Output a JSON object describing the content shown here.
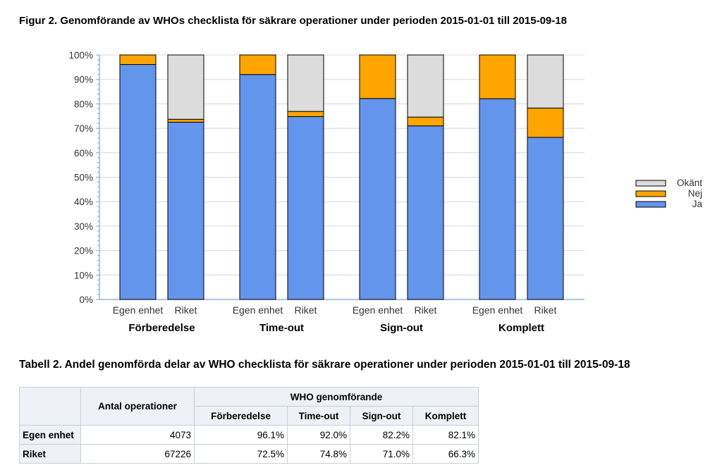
{
  "figure": {
    "title": "Figur 2. Genomförande av WHOs checklista för säkrare operationer under perioden 2015-01-01 till 2015-09-18"
  },
  "chart_data": {
    "type": "bar",
    "stacked": true,
    "groups": [
      "Förberedelse",
      "Time-out",
      "Sign-out",
      "Komplett"
    ],
    "categories": [
      "Egen enhet",
      "Riket"
    ],
    "series": [
      {
        "name": "Ja",
        "color": "#6495ed",
        "values": [
          [
            96.1,
            72.5
          ],
          [
            92.0,
            74.8
          ],
          [
            82.2,
            71.0
          ],
          [
            82.1,
            66.3
          ]
        ]
      },
      {
        "name": "Nej",
        "color": "#ffa500",
        "values": [
          [
            3.9,
            1.2
          ],
          [
            8.0,
            2.1
          ],
          [
            17.8,
            3.6
          ],
          [
            17.9,
            12.0
          ]
        ]
      },
      {
        "name": "Okänt",
        "color": "#dcdcdc",
        "values": [
          [
            0,
            26.3
          ],
          [
            0,
            23.1
          ],
          [
            0,
            25.4
          ],
          [
            0,
            21.7
          ]
        ]
      }
    ],
    "legend": [
      "Okänt",
      "Nej",
      "Ja"
    ],
    "legend_position": "right",
    "yticks": [
      "0%",
      "10%",
      "20%",
      "30%",
      "40%",
      "50%",
      "60%",
      "70%",
      "80%",
      "90%",
      "100%"
    ],
    "ylim": [
      0,
      100
    ],
    "grid": true,
    "xlabel": "",
    "ylabel": ""
  },
  "table": {
    "title": "Tabell 2. Andel genomförda delar av WHO checklista för säkrare operationer under perioden 2015-01-01 till 2015-09-18",
    "antal_header": "Antal operationer",
    "group_header": "WHO genomförande",
    "columns": [
      "Förberedelse",
      "Time-out",
      "Sign-out",
      "Komplett"
    ],
    "rows": [
      {
        "label": "Egen enhet",
        "antal": "4073",
        "values": [
          "96.1%",
          "92.0%",
          "82.2%",
          "82.1%"
        ]
      },
      {
        "label": "Riket",
        "antal": "67226",
        "values": [
          "72.5%",
          "74.8%",
          "71.0%",
          "66.3%"
        ]
      }
    ]
  }
}
